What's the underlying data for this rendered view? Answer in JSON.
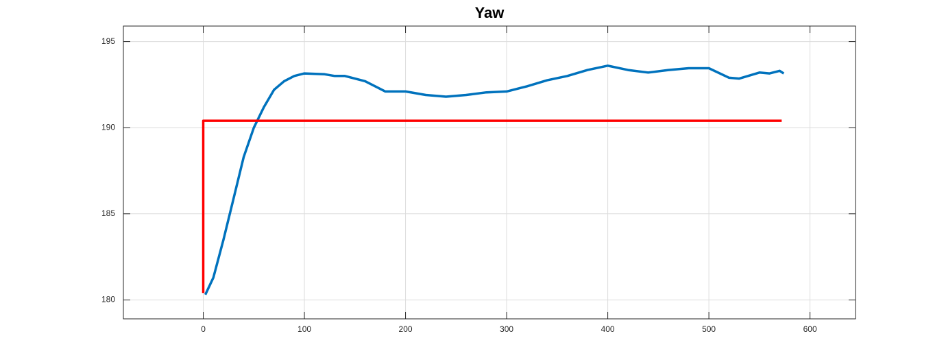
{
  "chart_data": {
    "type": "line",
    "title": "Yaw",
    "series": [
      {
        "color": "#0072bd",
        "x": [
          2,
          10,
          20,
          30,
          40,
          50,
          60,
          70,
          80,
          90,
          100,
          120,
          130,
          140,
          160,
          180,
          200,
          220,
          240,
          260,
          280,
          300,
          320,
          340,
          360,
          380,
          400,
          420,
          440,
          460,
          480,
          500,
          520,
          530,
          550,
          560,
          570,
          574
        ],
        "values": [
          180.3,
          181.3,
          183.5,
          185.9,
          188.3,
          190.0,
          191.2,
          192.2,
          192.7,
          193.0,
          193.15,
          193.1,
          193.0,
          193.0,
          192.7,
          192.1,
          192.1,
          191.9,
          191.8,
          191.9,
          192.05,
          192.1,
          192.4,
          192.75,
          193.0,
          193.35,
          193.6,
          193.35,
          193.2,
          193.35,
          193.45,
          193.45,
          192.9,
          192.85,
          193.2,
          193.15,
          193.3,
          193.15
        ]
      },
      {
        "color": "#ff0000",
        "x": [
          0,
          0,
          572
        ],
        "values": [
          180.4,
          190.4,
          190.4
        ]
      }
    ],
    "xlim": [
      -79,
      645
    ],
    "ylim": [
      178.9,
      195.9
    ],
    "xticks": [
      0,
      100,
      200,
      300,
      400,
      500,
      600
    ],
    "yticks": [
      180,
      185,
      190,
      195
    ],
    "grid": true
  }
}
